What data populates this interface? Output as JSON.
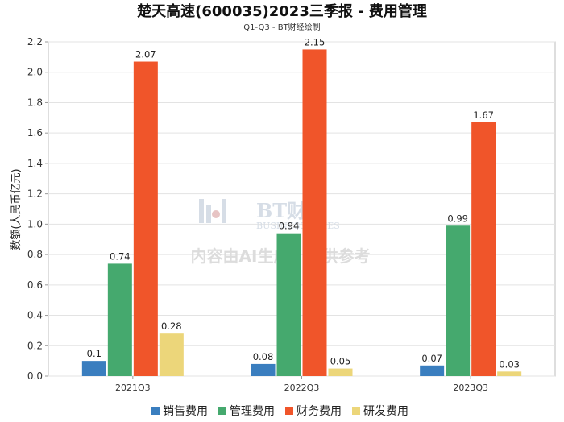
{
  "chart_data": {
    "type": "bar",
    "title": "楚天高速(600035)2023三季报 - 费用管理",
    "subtitle": "Q1-Q3 - BT财经绘制",
    "ylabel": "数额(人民币亿元)",
    "xlabel": "",
    "ylim": [
      0,
      2.2
    ],
    "yticks": [
      "0.0",
      "0.2",
      "0.4",
      "0.6",
      "0.8",
      "1.0",
      "1.2",
      "1.4",
      "1.6",
      "1.8",
      "2.0",
      "2.2"
    ],
    "categories": [
      "2021Q3",
      "2022Q3",
      "2023Q3"
    ],
    "series": [
      {
        "name": "销售费用",
        "color": "#3a7ebf",
        "values": [
          0.1,
          0.08,
          0.07
        ],
        "labels": [
          "0.1",
          "0.08",
          "0.07"
        ]
      },
      {
        "name": "管理费用",
        "color": "#45a96e",
        "values": [
          0.74,
          0.94,
          0.99
        ],
        "labels": [
          "0.74",
          "0.94",
          "0.99"
        ]
      },
      {
        "name": "财务费用",
        "color": "#f0552a",
        "values": [
          2.07,
          2.15,
          1.67
        ],
        "labels": [
          "2.07",
          "2.15",
          "1.67"
        ]
      },
      {
        "name": "研发费用",
        "color": "#ecd67a",
        "values": [
          0.28,
          0.05,
          0.03
        ],
        "labels": [
          "0.28",
          "0.05",
          "0.03"
        ]
      }
    ],
    "grid": true,
    "legend": "bottom"
  },
  "watermark": {
    "brand": "BT财经",
    "brand_en": "BUSINESS TIMES",
    "note": "内容由AI生成，仅供参考"
  }
}
